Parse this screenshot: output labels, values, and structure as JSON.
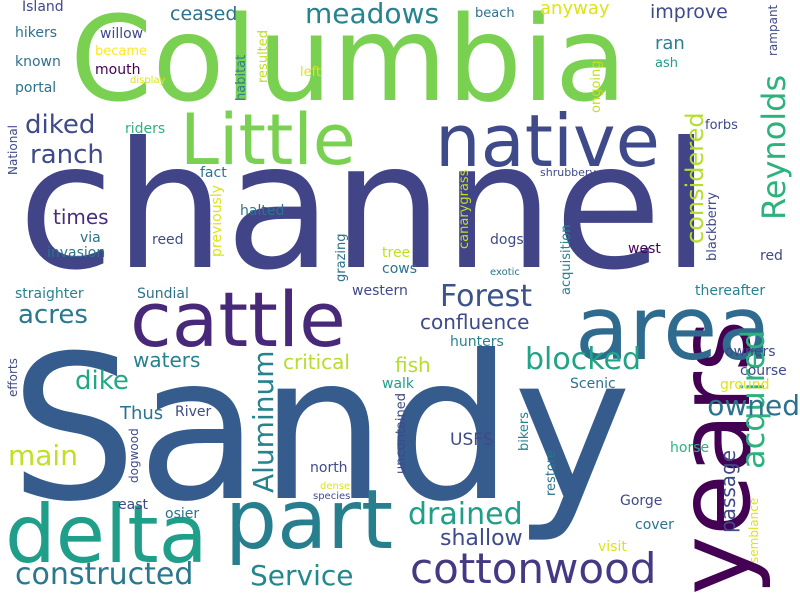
{
  "palette": {
    "dark_purple": "#440154",
    "indigo": "#472d7b",
    "blue_purple": "#3b528b",
    "blue": "#31688e",
    "teal_blue": "#26828e",
    "teal": "#1f9e89",
    "green": "#35b779",
    "light_green": "#6ece58",
    "lime": "#b5de2b",
    "yellow": "#fde725"
  },
  "words": [
    {
      "text": "Sandy",
      "color": "#365c8d",
      "size": 200
    },
    {
      "text": "channel",
      "color": "#414487",
      "size": 175
    },
    {
      "text": "Columbia",
      "color": "#7ad151",
      "size": 118
    },
    {
      "text": "years",
      "color": "#440154",
      "size": 100
    },
    {
      "text": "area",
      "color": "#2f6b8e",
      "size": 88
    },
    {
      "text": "cattle",
      "color": "#482878",
      "size": 76
    },
    {
      "text": "part",
      "color": "#277f8e",
      "size": 82
    },
    {
      "text": "delta",
      "color": "#1f9e89",
      "size": 80
    },
    {
      "text": "native",
      "color": "#3e4a89",
      "size": 72
    },
    {
      "text": "Little",
      "color": "#7ad151",
      "size": 70
    },
    {
      "text": "cottonwood",
      "color": "#443983",
      "size": 42
    },
    {
      "text": "Reynolds",
      "color": "#2db27d",
      "size": 32
    },
    {
      "text": "acquired",
      "color": "#2db27d",
      "size": 32
    },
    {
      "text": "constructed",
      "color": "#2a788e",
      "size": 30
    },
    {
      "text": "Forest",
      "color": "#3b528b",
      "size": 30
    },
    {
      "text": "blocked",
      "color": "#20a486",
      "size": 30
    },
    {
      "text": "drained",
      "color": "#1f9e89",
      "size": 30
    },
    {
      "text": "Service",
      "color": "#23888e",
      "size": 28
    },
    {
      "text": "Aluminum",
      "color": "#26828e",
      "size": 28
    },
    {
      "text": "meadows",
      "color": "#25848e",
      "size": 28
    },
    {
      "text": "owned",
      "color": "#2c728e",
      "size": 28
    },
    {
      "text": "main",
      "color": "#c2df23",
      "size": 28
    },
    {
      "text": "dike",
      "color": "#22a785",
      "size": 26
    },
    {
      "text": "diked",
      "color": "#3e4a89",
      "size": 26
    },
    {
      "text": "ranch",
      "color": "#3e4a89",
      "size": 26
    },
    {
      "text": "acres",
      "color": "#2a788e",
      "size": 26
    },
    {
      "text": "considered",
      "color": "#b5de2b",
      "size": 24
    },
    {
      "text": "shallow",
      "color": "#3e4a89",
      "size": 22
    },
    {
      "text": "confluence",
      "color": "#3e4a89",
      "size": 20
    },
    {
      "text": "passage",
      "color": "#3e4a89",
      "size": 20
    },
    {
      "text": "critical",
      "color": "#b5de2b",
      "size": 20
    },
    {
      "text": "fish",
      "color": "#b5de2b",
      "size": 20
    },
    {
      "text": "waters",
      "color": "#26828e",
      "size": 20
    },
    {
      "text": "times",
      "color": "#472d7b",
      "size": 20
    },
    {
      "text": "ceased",
      "color": "#2c728e",
      "size": 19
    },
    {
      "text": "improve",
      "color": "#3e4a89",
      "size": 19
    },
    {
      "text": "anyway",
      "color": "#dde318",
      "size": 18
    },
    {
      "text": "Thus",
      "color": "#2c728e",
      "size": 18
    },
    {
      "text": "ran",
      "color": "#26828e",
      "size": 18
    },
    {
      "text": "USFS",
      "color": "#3e4a89",
      "size": 17
    },
    {
      "text": "Gorge",
      "color": "#3e4a89",
      "size": 14
    },
    {
      "text": "Island",
      "color": "#3e4a89",
      "size": 14
    },
    {
      "text": "hikers",
      "color": "#2c728e",
      "size": 14
    },
    {
      "text": "known",
      "color": "#2c728e",
      "size": 14
    },
    {
      "text": "portal",
      "color": "#2c728e",
      "size": 14
    },
    {
      "text": "mouth",
      "color": "#440154",
      "size": 14
    },
    {
      "text": "willow",
      "color": "#3e4a89",
      "size": 14
    },
    {
      "text": "became",
      "color": "#fde725",
      "size": 13
    },
    {
      "text": "riders",
      "color": "#2db27d",
      "size": 14
    },
    {
      "text": "habitat",
      "color": "#26828e",
      "size": 13
    },
    {
      "text": "resulted",
      "color": "#bddf26",
      "size": 13
    },
    {
      "text": "left",
      "color": "#dde318",
      "size": 13
    },
    {
      "text": "beach",
      "color": "#2c728e",
      "size": 13
    },
    {
      "text": "ash",
      "color": "#1f9e89",
      "size": 13
    },
    {
      "text": "rampant",
      "color": "#3e4a89",
      "size": 12
    },
    {
      "text": "ongoing",
      "color": "#c2df23",
      "size": 13
    },
    {
      "text": "forbs",
      "color": "#3e4a89",
      "size": 13
    },
    {
      "text": "fact",
      "color": "#2c728e",
      "size": 14
    },
    {
      "text": "halted",
      "color": "#2c728e",
      "size": 14
    },
    {
      "text": "previously",
      "color": "#dde318",
      "size": 14
    },
    {
      "text": "grazing",
      "color": "#2c728e",
      "size": 13
    },
    {
      "text": "canarygrass",
      "color": "#c2df23",
      "size": 13
    },
    {
      "text": "acquisition",
      "color": "#26828e",
      "size": 13
    },
    {
      "text": "blackberry",
      "color": "#3e4a89",
      "size": 13
    },
    {
      "text": "shrubbery",
      "color": "#3e4a89",
      "size": 11
    },
    {
      "text": "red",
      "color": "#3e4a89",
      "size": 14
    },
    {
      "text": "west",
      "color": "#440154",
      "size": 14
    },
    {
      "text": "exotic",
      "color": "#2c728e",
      "size": 10
    },
    {
      "text": "tree",
      "color": "#bddf26",
      "size": 14
    },
    {
      "text": "cows",
      "color": "#2c728e",
      "size": 14
    },
    {
      "text": "dogs",
      "color": "#3e4a89",
      "size": 14
    },
    {
      "text": "reed",
      "color": "#3e4a89",
      "size": 14
    },
    {
      "text": "via",
      "color": "#2c728e",
      "size": 14
    },
    {
      "text": "invasion",
      "color": "#2c728e",
      "size": 14
    },
    {
      "text": "straighter",
      "color": "#26828e",
      "size": 14
    },
    {
      "text": "Sundial",
      "color": "#2c728e",
      "size": 14
    },
    {
      "text": "western",
      "color": "#3e4a89",
      "size": 14
    },
    {
      "text": "thereafter",
      "color": "#26828e",
      "size": 14
    },
    {
      "text": "hunters",
      "color": "#26828e",
      "size": 14
    },
    {
      "text": "owners",
      "color": "#3e4a89",
      "size": 14
    },
    {
      "text": "course",
      "color": "#3e4a89",
      "size": 14
    },
    {
      "text": "ground",
      "color": "#dde318",
      "size": 14
    },
    {
      "text": "walk",
      "color": "#1f9e89",
      "size": 14
    },
    {
      "text": "Scenic",
      "color": "#2c728e",
      "size": 14
    },
    {
      "text": "National",
      "color": "#3e4a89",
      "size": 12
    },
    {
      "text": "efforts",
      "color": "#3e4a89",
      "size": 12
    },
    {
      "text": "River",
      "color": "#3e4a89",
      "size": 14
    },
    {
      "text": "horse",
      "color": "#2db27d",
      "size": 14
    },
    {
      "text": "north",
      "color": "#3e4a89",
      "size": 14
    },
    {
      "text": "uncontained",
      "color": "#3e4a89",
      "size": 13
    },
    {
      "text": "bikers",
      "color": "#26828e",
      "size": 13
    },
    {
      "text": "restore",
      "color": "#2c728e",
      "size": 13
    },
    {
      "text": "dogwood",
      "color": "#3e4a89",
      "size": 12
    },
    {
      "text": "east",
      "color": "#3e4a89",
      "size": 14
    },
    {
      "text": "osier",
      "color": "#2c728e",
      "size": 14
    },
    {
      "text": "dense",
      "color": "#dde318",
      "size": 10
    },
    {
      "text": "species",
      "color": "#3e4a89",
      "size": 10
    },
    {
      "text": "cover",
      "color": "#2c728e",
      "size": 14
    },
    {
      "text": "visit",
      "color": "#dde318",
      "size": 14
    },
    {
      "text": "semblance",
      "color": "#dde318",
      "size": 12
    },
    {
      "text": "display",
      "color": "#dde318",
      "size": 10
    }
  ]
}
